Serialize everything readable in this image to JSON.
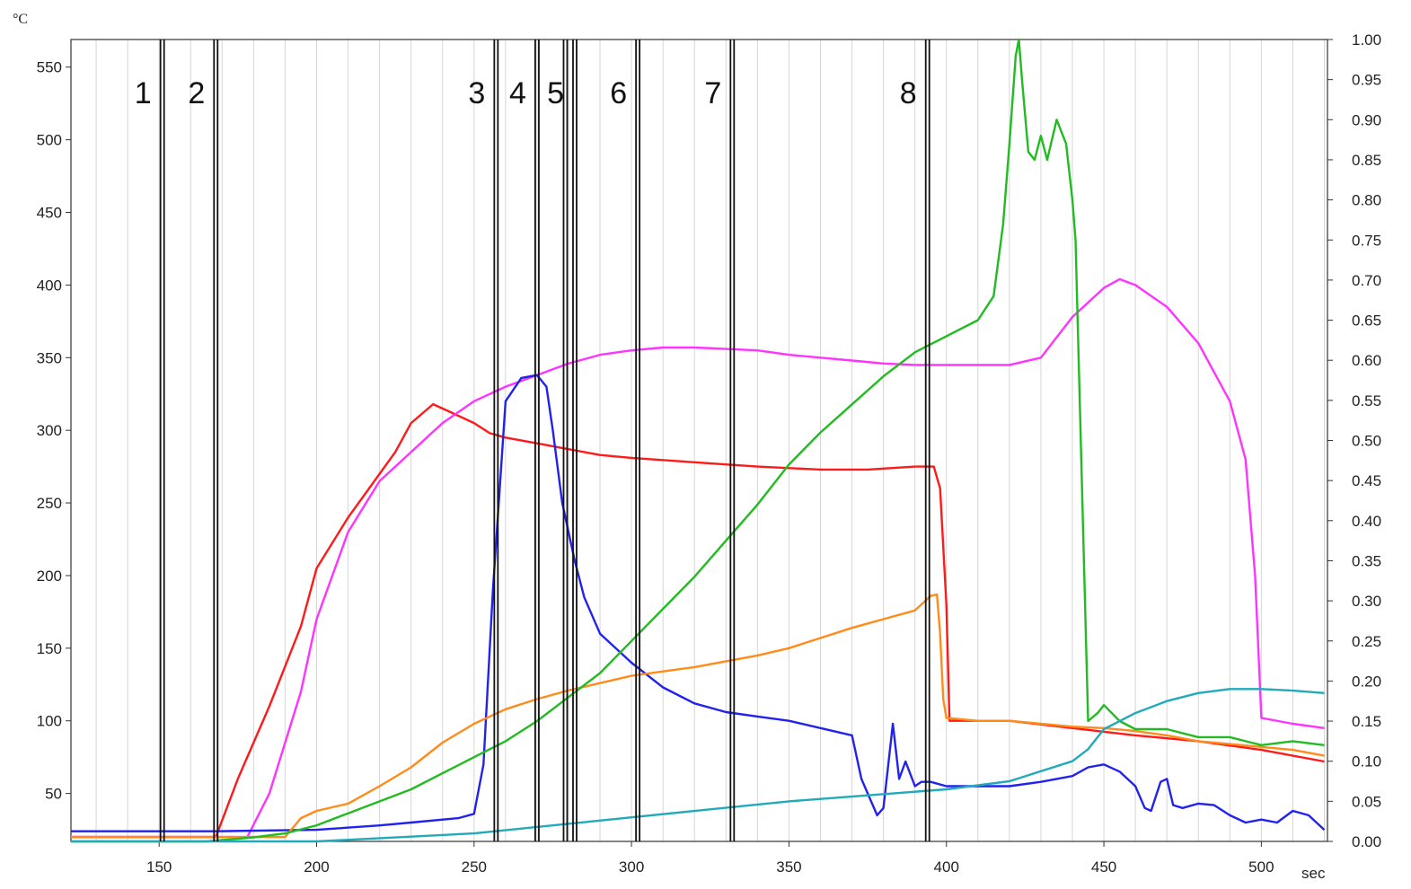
{
  "chart_data": {
    "type": "line",
    "title": "",
    "xlabel": "",
    "x_unit": "sec",
    "ylabel_left": "",
    "y_left_unit": "°C",
    "ylabel_right": "",
    "xlim": [
      122,
      521
    ],
    "ylim_left": [
      17,
      569
    ],
    "ylim_right": [
      0.0,
      1.0
    ],
    "x_ticks": [
      150,
      200,
      250,
      300,
      350,
      400,
      450,
      500
    ],
    "y_left_ticks": [
      50,
      100,
      150,
      200,
      250,
      300,
      350,
      400,
      450,
      500,
      550
    ],
    "y_right_ticks": [
      "0.00",
      "0.05",
      "0.10",
      "0.15",
      "0.20",
      "0.25",
      "0.30",
      "0.35",
      "0.40",
      "0.45",
      "0.50",
      "0.55",
      "0.60",
      "0.65",
      "0.70",
      "0.75",
      "0.80",
      "0.85",
      "0.90",
      "0.95",
      "1.00"
    ],
    "grid": true,
    "legend": "none",
    "markers": [
      {
        "label": "1",
        "x": 151,
        "color": "#111111"
      },
      {
        "label": "2",
        "x": 168,
        "color": "#111111"
      },
      {
        "label": "3",
        "x": 257,
        "color": "#111111"
      },
      {
        "label": "4",
        "x": 270,
        "color": "#111111"
      },
      {
        "label": "",
        "x": 279,
        "color": "#111111"
      },
      {
        "label": "5",
        "x": 282,
        "color": "#111111"
      },
      {
        "label": "6",
        "x": 302,
        "color": "#111111"
      },
      {
        "label": "7",
        "x": 332,
        "color": "#111111"
      },
      {
        "label": "8",
        "x": 394,
        "color": "#ff0000"
      }
    ],
    "series": [
      {
        "color": "#ff1a1a",
        "axis": "left",
        "x": [
          122,
          168,
          175,
          185,
          195,
          200,
          210,
          215,
          225,
          230,
          237,
          242,
          250,
          255,
          260,
          270,
          280,
          290,
          300,
          320,
          340,
          360,
          375,
          390,
          396,
          398,
          400,
          401,
          405,
          420,
          440,
          460,
          480,
          500,
          520
        ],
        "y": [
          20,
          20,
          60,
          110,
          165,
          205,
          240,
          255,
          285,
          305,
          318,
          313,
          305,
          298,
          295,
          291,
          287,
          283,
          281,
          278,
          275,
          273,
          273,
          275,
          275,
          260,
          180,
          100,
          100,
          100,
          95,
          90,
          86,
          80,
          72
        ]
      },
      {
        "color": "#ff33ff",
        "axis": "left",
        "x": [
          122,
          178,
          185,
          195,
          200,
          210,
          220,
          230,
          240,
          250,
          260,
          270,
          280,
          290,
          300,
          310,
          320,
          330,
          340,
          350,
          360,
          370,
          380,
          390,
          400,
          410,
          420,
          430,
          440,
          450,
          455,
          460,
          470,
          480,
          490,
          495,
          498,
          500,
          510,
          520
        ],
        "y": [
          20,
          20,
          50,
          120,
          170,
          230,
          265,
          285,
          305,
          320,
          330,
          338,
          346,
          352,
          355,
          357,
          357,
          356,
          355,
          352,
          350,
          348,
          346,
          345,
          345,
          345,
          345,
          350,
          378,
          398,
          404,
          400,
          385,
          360,
          320,
          280,
          200,
          102,
          98,
          95
        ]
      },
      {
        "color": "#2222ee",
        "axis": "left",
        "x": [
          122,
          168,
          200,
          220,
          230,
          245,
          250,
          253,
          256,
          260,
          265,
          270,
          273,
          275,
          278,
          282,
          285,
          290,
          300,
          310,
          320,
          330,
          340,
          350,
          360,
          370,
          373,
          375,
          378,
          380,
          383,
          385,
          387,
          390,
          392,
          395,
          400,
          410,
          420,
          430,
          440,
          445,
          450,
          455,
          460,
          463,
          465,
          468,
          470,
          472,
          475,
          480,
          485,
          490,
          495,
          500,
          505,
          510,
          515,
          520
        ],
        "y": [
          24,
          24,
          25,
          28,
          30,
          33,
          36,
          70,
          190,
          320,
          336,
          338,
          330,
          300,
          250,
          210,
          185,
          160,
          140,
          123,
          112,
          106,
          103,
          100,
          95,
          90,
          60,
          50,
          35,
          40,
          98,
          60,
          72,
          55,
          58,
          58,
          55,
          55,
          55,
          58,
          62,
          68,
          70,
          65,
          55,
          40,
          38,
          58,
          60,
          42,
          40,
          43,
          42,
          35,
          30,
          32,
          30,
          38,
          35,
          25
        ]
      },
      {
        "color": "#ff8c1a",
        "axis": "left",
        "x": [
          122,
          190,
          195,
          200,
          210,
          220,
          230,
          240,
          250,
          260,
          270,
          280,
          290,
          300,
          310,
          320,
          330,
          340,
          350,
          360,
          370,
          380,
          390,
          395,
          397,
          398,
          399,
          400,
          410,
          420,
          430,
          440,
          450,
          460,
          470,
          480,
          490,
          500,
          510,
          520
        ],
        "y": [
          20,
          20,
          33,
          38,
          43,
          55,
          68,
          85,
          98,
          108,
          115,
          121,
          126,
          131,
          134,
          137,
          141,
          145,
          150,
          157,
          164,
          170,
          176,
          186,
          187,
          160,
          115,
          102,
          100,
          100,
          98,
          96,
          95,
          93,
          90,
          86,
          84,
          82,
          80,
          76
        ]
      },
      {
        "color": "#22bb22",
        "axis": "right",
        "x": [
          122,
          165,
          180,
          190,
          200,
          210,
          220,
          230,
          240,
          250,
          260,
          270,
          280,
          290,
          300,
          310,
          320,
          330,
          340,
          350,
          360,
          370,
          380,
          390,
          400,
          410,
          415,
          418,
          420,
          422,
          423,
          424,
          426,
          428,
          430,
          432,
          435,
          438,
          440,
          441,
          442,
          443,
          444,
          445,
          448,
          450,
          455,
          460,
          470,
          480,
          490,
          500,
          510,
          520
        ],
        "y": [
          0.0,
          0.0,
          0.005,
          0.01,
          0.02,
          0.035,
          0.05,
          0.065,
          0.085,
          0.105,
          0.125,
          0.15,
          0.18,
          0.21,
          0.25,
          0.29,
          0.33,
          0.375,
          0.42,
          0.47,
          0.51,
          0.545,
          0.58,
          0.61,
          0.63,
          0.65,
          0.68,
          0.77,
          0.87,
          0.98,
          1.0,
          0.95,
          0.86,
          0.85,
          0.88,
          0.85,
          0.9,
          0.87,
          0.8,
          0.75,
          0.6,
          0.45,
          0.3,
          0.15,
          0.16,
          0.17,
          0.15,
          0.14,
          0.14,
          0.13,
          0.13,
          0.12,
          0.125,
          0.12
        ]
      },
      {
        "color": "#22aabb",
        "axis": "right",
        "x": [
          122,
          160,
          200,
          250,
          300,
          350,
          400,
          420,
          440,
          445,
          450,
          460,
          470,
          480,
          490,
          500,
          510,
          520
        ],
        "y": [
          0.0,
          0.0,
          0.0,
          0.01,
          0.03,
          0.05,
          0.065,
          0.075,
          0.1,
          0.115,
          0.14,
          0.16,
          0.175,
          0.185,
          0.19,
          0.19,
          0.188,
          0.185
        ]
      }
    ]
  }
}
